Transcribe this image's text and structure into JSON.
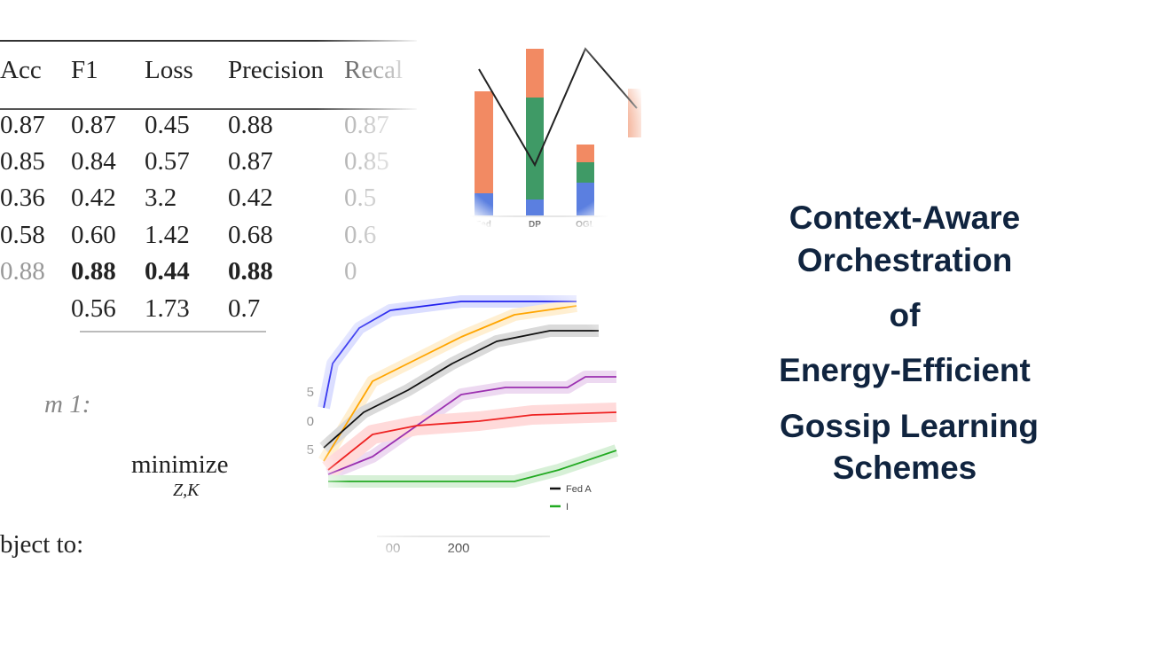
{
  "title": {
    "lines": [
      "Context-Aware",
      "Orchestration",
      "of",
      "Energy-Efficient",
      "Gossip Learning",
      "Schemes"
    ]
  },
  "table": {
    "header": [
      "Acc",
      "F1",
      "Loss",
      "Precision",
      "Recal"
    ],
    "rows": [
      [
        "0.87",
        "0.87",
        "0.45",
        "0.88",
        "0.87"
      ],
      [
        "0.85",
        "0.84",
        "0.57",
        "0.87",
        "0.85"
      ],
      [
        "0.36",
        "0.42",
        "3.2",
        "0.42",
        "0.5"
      ],
      [
        "0.58",
        "0.60",
        "1.42",
        "0.68",
        "0.6"
      ],
      [
        "0.88",
        "0.88",
        "0.44",
        "0.88",
        "0"
      ],
      [
        "0.56",
        "1.73",
        "0.7"
      ]
    ]
  },
  "algorithm": {
    "label": "m 1:",
    "objective": "minimize",
    "subscript": "Z,K",
    "constraint": "bject to:"
  },
  "bar_figure": {
    "categories": [
      "Fed",
      "DP",
      "OGL"
    ]
  },
  "line_figure": {
    "yticks": [
      "5",
      "0",
      "5"
    ],
    "xticks": [
      "00",
      "200"
    ],
    "legend": [
      "Fed A",
      "I"
    ]
  }
}
